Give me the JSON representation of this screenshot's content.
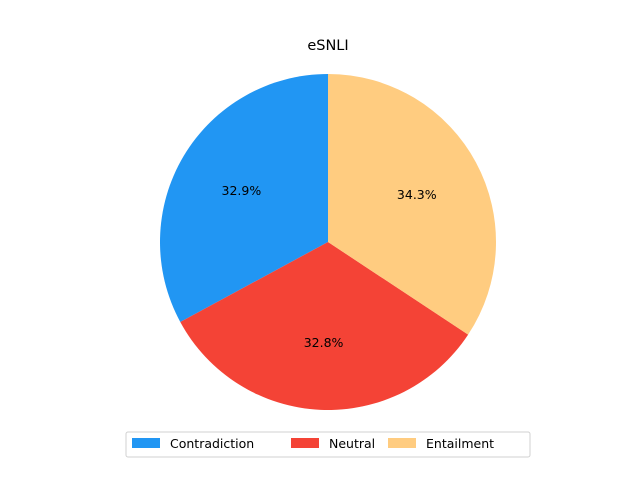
{
  "chart_data": {
    "type": "pie",
    "title": "eSNLI",
    "categories": [
      "Contradiction",
      "Neutral",
      "Entailment"
    ],
    "values": [
      32.9,
      32.8,
      34.3
    ],
    "labels": [
      "32.9%",
      "32.8%",
      "34.3%"
    ],
    "colors": [
      "#2196f3",
      "#f44336",
      "#ffcc80"
    ],
    "start_angle_deg": 90,
    "direction": "counterclockwise",
    "legend": {
      "placement": "bottom-center",
      "columns": 3
    }
  }
}
